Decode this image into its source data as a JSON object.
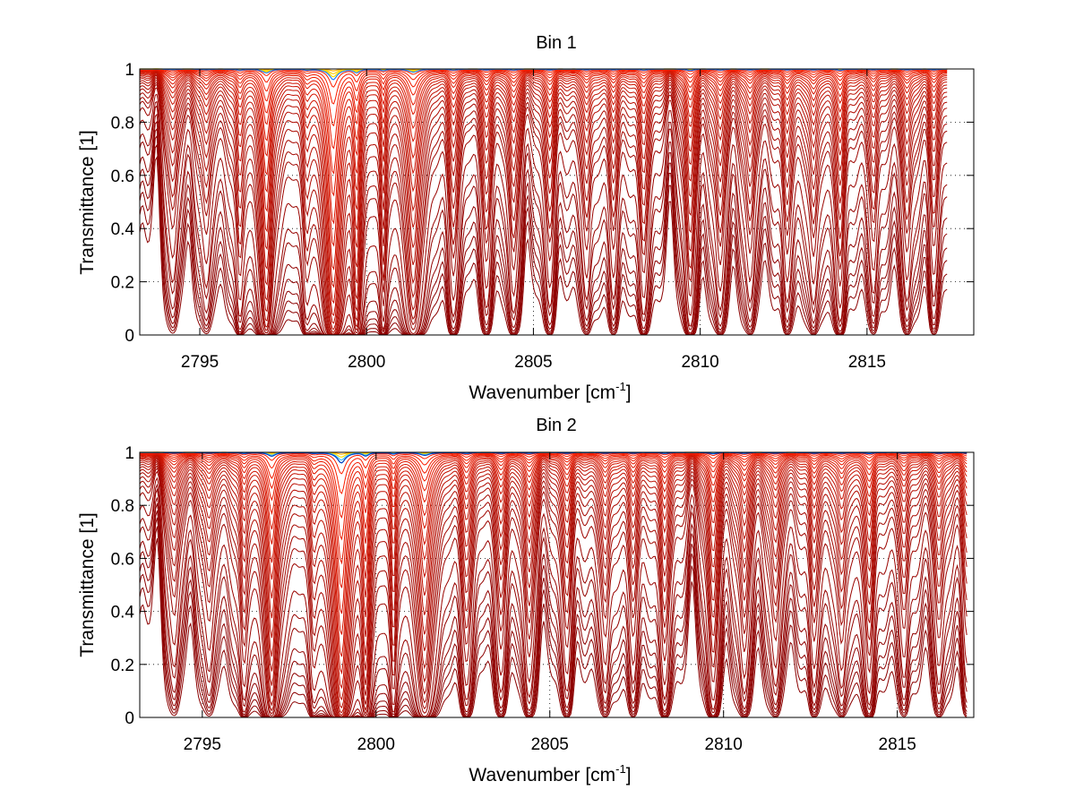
{
  "chart_data": [
    {
      "type": "line",
      "title": "Bin 1",
      "xlabel": "Wavenumber [cm",
      "xlabel_sup": "-1",
      "xlabel_end": "]",
      "ylabel": "Transmittance [1]",
      "xlim": [
        2793.2,
        2818.2
      ],
      "ylim": [
        0,
        1
      ],
      "x_data_end": 2817.4,
      "xticks": [
        2795,
        2800,
        2805,
        2810,
        2815
      ],
      "yticks": [
        0,
        0.2,
        0.4,
        0.6,
        0.8,
        1
      ],
      "ytick_labels": [
        "0",
        "0.2",
        "0.4",
        "0.6",
        "0.8",
        "1"
      ],
      "grid": "dotted",
      "series_levels": [
        0.005,
        0.012,
        0.022,
        0.035,
        0.055,
        0.085,
        0.14,
        0.18,
        0.27,
        0.38,
        0.45,
        0.5,
        0.56,
        0.62,
        0.67,
        0.72,
        0.76,
        0.8,
        0.83,
        0.86,
        0.885,
        0.905,
        0.925,
        0.94,
        0.955,
        0.965,
        0.975,
        0.983,
        0.99,
        0.995
      ],
      "top_colors": [
        "#ffb000",
        "#ffd000",
        "#ffe000",
        "#2080ff"
      ],
      "absorption_lines": [
        {
          "x": 2797.0,
          "strength": 2.5,
          "width": 0.13
        },
        {
          "x": 2799.0,
          "strength": 7.0,
          "width": 0.14
        },
        {
          "x": 2799.7,
          "strength": 2.2,
          "width": 0.1
        },
        {
          "x": 2800.5,
          "strength": 1.0,
          "width": 0.09
        },
        {
          "x": 2801.4,
          "strength": 2.0,
          "width": 0.16
        },
        {
          "x": 2796.2,
          "strength": 0.7,
          "width": 0.12
        },
        {
          "x": 2795.2,
          "strength": 0.45,
          "width": 0.15
        },
        {
          "x": 2794.2,
          "strength": 0.4,
          "width": 0.15
        },
        {
          "x": 2798.2,
          "strength": 0.5,
          "width": 0.12
        },
        {
          "x": 2802.6,
          "strength": 0.6,
          "width": 0.14
        },
        {
          "x": 2803.6,
          "strength": 0.5,
          "width": 0.14
        },
        {
          "x": 2804.4,
          "strength": 0.6,
          "width": 0.14
        },
        {
          "x": 2805.5,
          "strength": 0.55,
          "width": 0.14
        },
        {
          "x": 2806.6,
          "strength": 0.55,
          "width": 0.14
        },
        {
          "x": 2807.4,
          "strength": 0.5,
          "width": 0.14
        },
        {
          "x": 2808.3,
          "strength": 0.7,
          "width": 0.14
        },
        {
          "x": 2809.7,
          "strength": 0.9,
          "width": 0.13
        },
        {
          "x": 2810.6,
          "strength": 0.6,
          "width": 0.14
        },
        {
          "x": 2811.5,
          "strength": 0.55,
          "width": 0.14
        },
        {
          "x": 2812.6,
          "strength": 0.55,
          "width": 0.14
        },
        {
          "x": 2813.4,
          "strength": 0.6,
          "width": 0.14
        },
        {
          "x": 2814.2,
          "strength": 0.8,
          "width": 0.13
        },
        {
          "x": 2815.2,
          "strength": 0.5,
          "width": 0.14
        },
        {
          "x": 2816.2,
          "strength": 0.55,
          "width": 0.14
        },
        {
          "x": 2817.0,
          "strength": 0.5,
          "width": 0.14
        }
      ]
    },
    {
      "type": "line",
      "title": "Bin 2",
      "xlabel": "Wavenumber [cm",
      "xlabel_sup": "-1",
      "xlabel_end": "]",
      "ylabel": "Transmittance [1]",
      "xlim": [
        2793.2,
        2817.2
      ],
      "ylim": [
        0,
        1
      ],
      "x_data_end": 2817.0,
      "xticks": [
        2795,
        2800,
        2805,
        2810,
        2815
      ],
      "yticks": [
        0,
        0.2,
        0.4,
        0.6,
        0.8,
        1
      ],
      "ytick_labels": [
        "0",
        "0.2",
        "0.4",
        "0.6",
        "0.8",
        "1"
      ],
      "grid": "dotted",
      "series_levels": [
        0.005,
        0.012,
        0.022,
        0.035,
        0.055,
        0.08,
        0.13,
        0.17,
        0.25,
        0.36,
        0.43,
        0.49,
        0.55,
        0.61,
        0.66,
        0.71,
        0.75,
        0.79,
        0.825,
        0.855,
        0.88,
        0.9,
        0.92,
        0.935,
        0.95,
        0.962,
        0.972,
        0.98,
        0.988,
        0.994
      ],
      "top_colors": [
        "#ffb000",
        "#ffe000",
        "#40c0ff",
        "#0040c0"
      ],
      "absorption_lines": [
        {
          "x": 2797.0,
          "strength": 2.5,
          "width": 0.13
        },
        {
          "x": 2799.0,
          "strength": 7.0,
          "width": 0.14
        },
        {
          "x": 2799.7,
          "strength": 2.2,
          "width": 0.1
        },
        {
          "x": 2800.5,
          "strength": 1.0,
          "width": 0.09
        },
        {
          "x": 2801.4,
          "strength": 2.0,
          "width": 0.16
        },
        {
          "x": 2796.2,
          "strength": 0.7,
          "width": 0.12
        },
        {
          "x": 2795.2,
          "strength": 0.45,
          "width": 0.15
        },
        {
          "x": 2794.2,
          "strength": 0.4,
          "width": 0.15
        },
        {
          "x": 2798.2,
          "strength": 0.5,
          "width": 0.12
        },
        {
          "x": 2802.6,
          "strength": 0.6,
          "width": 0.14
        },
        {
          "x": 2803.6,
          "strength": 0.5,
          "width": 0.14
        },
        {
          "x": 2804.4,
          "strength": 0.6,
          "width": 0.14
        },
        {
          "x": 2805.5,
          "strength": 0.55,
          "width": 0.14
        },
        {
          "x": 2806.6,
          "strength": 0.55,
          "width": 0.14
        },
        {
          "x": 2807.4,
          "strength": 0.5,
          "width": 0.14
        },
        {
          "x": 2808.3,
          "strength": 0.7,
          "width": 0.14
        },
        {
          "x": 2809.7,
          "strength": 0.9,
          "width": 0.13
        },
        {
          "x": 2810.6,
          "strength": 0.6,
          "width": 0.14
        },
        {
          "x": 2811.5,
          "strength": 0.55,
          "width": 0.14
        },
        {
          "x": 2812.6,
          "strength": 0.55,
          "width": 0.14
        },
        {
          "x": 2813.4,
          "strength": 0.6,
          "width": 0.14
        },
        {
          "x": 2814.2,
          "strength": 0.8,
          "width": 0.13
        },
        {
          "x": 2815.2,
          "strength": 0.5,
          "width": 0.14
        },
        {
          "x": 2816.2,
          "strength": 0.55,
          "width": 0.14
        },
        {
          "x": 2817.0,
          "strength": 0.5,
          "width": 0.14
        }
      ]
    }
  ],
  "colors": {
    "axis": "#000000",
    "grid": "#000000",
    "low_series": "#8b0000",
    "high_series": "#ff2000"
  }
}
